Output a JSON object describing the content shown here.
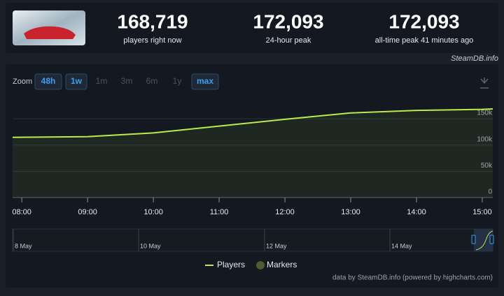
{
  "stats": [
    {
      "value": "168,719",
      "label": "players right now"
    },
    {
      "value": "172,093",
      "label": "24-hour peak"
    },
    {
      "value": "172,093",
      "label": "all-time peak 41 minutes ago"
    }
  ],
  "brand": "SteamDB.info",
  "zoom": {
    "label": "Zoom",
    "buttons": [
      {
        "text": "48h",
        "active": true
      },
      {
        "text": "1w",
        "active": true
      },
      {
        "text": "1m",
        "active": false
      },
      {
        "text": "3m",
        "active": false
      },
      {
        "text": "6m",
        "active": false
      },
      {
        "text": "1y",
        "active": false
      },
      {
        "text": "max",
        "active": true
      }
    ]
  },
  "chart_data": {
    "type": "line",
    "x": [
      7.86,
      9,
      10,
      11,
      12,
      13,
      14,
      15,
      15.16
    ],
    "series": [
      {
        "name": "Players",
        "color": "#b9ec4a",
        "values": [
          114500,
          116000,
          123000,
          136000,
          149000,
          161000,
          166000,
          168000,
          168719
        ]
      }
    ],
    "markers": {
      "name": "Markers",
      "color": "#4d5a32"
    },
    "xlim": [
      7.86,
      15.16
    ],
    "ylim": [
      0,
      190000
    ],
    "xticks": [
      {
        "value": 8,
        "label": "08:00"
      },
      {
        "value": 9,
        "label": "09:00"
      },
      {
        "value": 10,
        "label": "10:00"
      },
      {
        "value": 11,
        "label": "11:00"
      },
      {
        "value": 12,
        "label": "12:00"
      },
      {
        "value": 13,
        "label": "13:00"
      },
      {
        "value": 14,
        "label": "14:00"
      },
      {
        "value": 15,
        "label": "15:00"
      }
    ],
    "yticks": [
      0,
      {
        "value": 50000,
        "label": "50k"
      },
      {
        "value": 100000,
        "label": "100k"
      },
      {
        "value": 150000,
        "label": "150k"
      }
    ],
    "grid": true
  },
  "navigator": {
    "labels": [
      "8 May",
      "10 May",
      "12 May",
      "14 May"
    ]
  },
  "credits": "data by SteamDB.info (powered by highcharts.com)"
}
